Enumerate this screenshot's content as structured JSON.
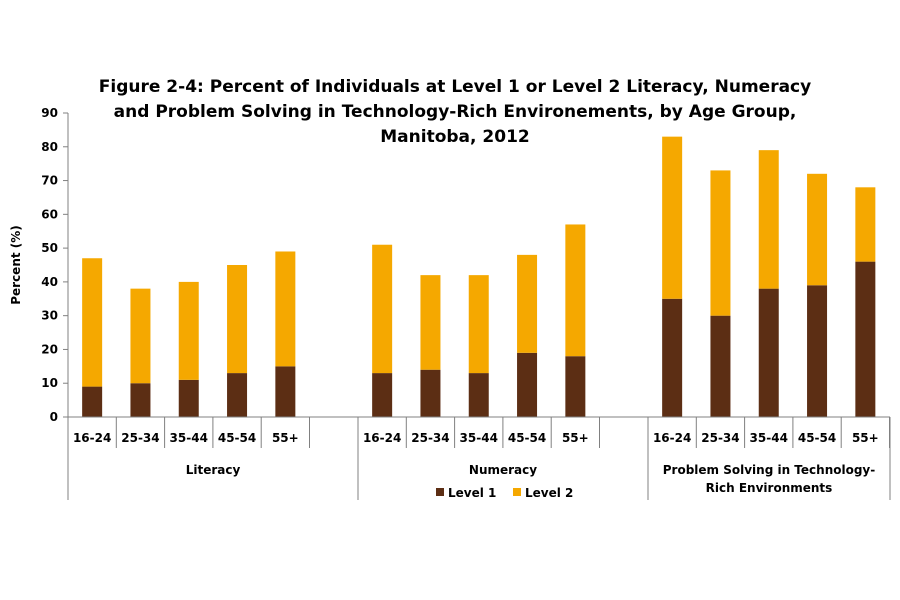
{
  "chart_data": {
    "type": "bar",
    "stacked": true,
    "title_lines": [
      "Figure 2-4: Percent of Individuals at Level 1 or Level 2 Literacy, Numeracy",
      "and Problem Solving in Technology-Rich Environements, by Age Group,",
      "Manitoba, 2012"
    ],
    "ylabel": "Percent (%)",
    "ylim": [
      0,
      90
    ],
    "yticks": [
      0,
      10,
      20,
      30,
      40,
      50,
      60,
      70,
      80,
      90
    ],
    "grid": false,
    "legend_position": "bottom",
    "age_groups": [
      "16-24",
      "25-34",
      "35-44",
      "45-54",
      "55+"
    ],
    "groups": [
      {
        "name_lines": [
          "Literacy"
        ],
        "level1": [
          9,
          10,
          11,
          13,
          15
        ],
        "level2": [
          38,
          28,
          29,
          32,
          34
        ]
      },
      {
        "name_lines": [
          "Numeracy"
        ],
        "level1": [
          13,
          14,
          13,
          19,
          18
        ],
        "level2": [
          38,
          28,
          29,
          29,
          39
        ]
      },
      {
        "name_lines": [
          "Problem Solving in Technology-",
          "Rich Environments"
        ],
        "level1": [
          35,
          30,
          38,
          39,
          46
        ],
        "level2": [
          48,
          43,
          41,
          33,
          22
        ]
      }
    ],
    "series": [
      {
        "name": "Level 1",
        "color": "#5c2e14"
      },
      {
        "name": "Level 2",
        "color": "#f5a800"
      }
    ]
  }
}
